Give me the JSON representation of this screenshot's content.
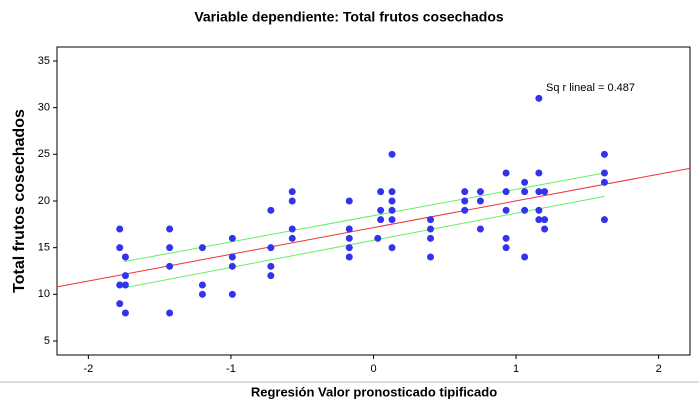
{
  "chart_data": {
    "type": "scatter",
    "title": "Variable dependiente: Total frutos cosechados",
    "xlabel": "Regresión Valor pronosticado tipificado",
    "ylabel": "Total frutos cosechados",
    "annotation": "Sq r lineal = 0.487",
    "color": "#3333ee",
    "x": [
      -1.78,
      -1.78,
      -1.78,
      -1.78,
      -1.74,
      -1.74,
      -1.74,
      -1.74,
      -1.43,
      -1.43,
      -1.43,
      -1.43,
      -1.2,
      -1.2,
      -1.2,
      -0.99,
      -0.99,
      -0.99,
      -0.99,
      -0.72,
      -0.72,
      -0.72,
      -0.72,
      -0.57,
      -0.57,
      -0.57,
      -0.57,
      -0.17,
      -0.17,
      -0.17,
      -0.17,
      -0.17,
      0.03,
      0.05,
      0.05,
      0.05,
      0.13,
      0.13,
      0.13,
      0.13,
      0.13,
      0.13,
      0.4,
      0.4,
      0.4,
      0.4,
      0.64,
      0.64,
      0.64,
      0.75,
      0.75,
      0.75,
      0.93,
      0.93,
      0.93,
      0.93,
      0.93,
      1.06,
      1.06,
      1.06,
      1.06,
      1.16,
      1.16,
      1.16,
      1.16,
      1.16,
      1.2,
      1.2,
      1.2,
      1.62,
      1.62,
      1.62,
      1.62
    ],
    "y": [
      17,
      15,
      11,
      9,
      14,
      12,
      11,
      8,
      17,
      15,
      13,
      8,
      15,
      11,
      10,
      16,
      14,
      13,
      10,
      19,
      15,
      13,
      12,
      21,
      20,
      17,
      16,
      20,
      17,
      16,
      15,
      14,
      16,
      21,
      19,
      18,
      25,
      21,
      20,
      19,
      18,
      15,
      18,
      17,
      16,
      14,
      21,
      20,
      19,
      21,
      20,
      17,
      23,
      21,
      19,
      16,
      15,
      22,
      21,
      19,
      14,
      31,
      23,
      21,
      19,
      18,
      21,
      18,
      17,
      25,
      23,
      22,
      18
    ],
    "fit": {
      "color": "#ee3333",
      "x": [
        -2.22,
        2.22
      ],
      "y": [
        10.8,
        23.5
      ]
    },
    "ci": [
      {
        "color": "#66ee66",
        "x": [
          -1.75,
          1.62
        ],
        "y": [
          13.5,
          23
        ]
      },
      {
        "color": "#66ee66",
        "x": [
          -1.75,
          1.62
        ],
        "y": [
          10.7,
          20.5
        ]
      }
    ],
    "xlim": [
      -2.22,
      2.22
    ],
    "ylim": [
      3.5,
      36.5
    ],
    "xticks": [
      -2,
      -1,
      0,
      1,
      2
    ],
    "yticks": [
      5,
      10,
      15,
      20,
      25,
      30,
      35
    ],
    "grid": false
  }
}
